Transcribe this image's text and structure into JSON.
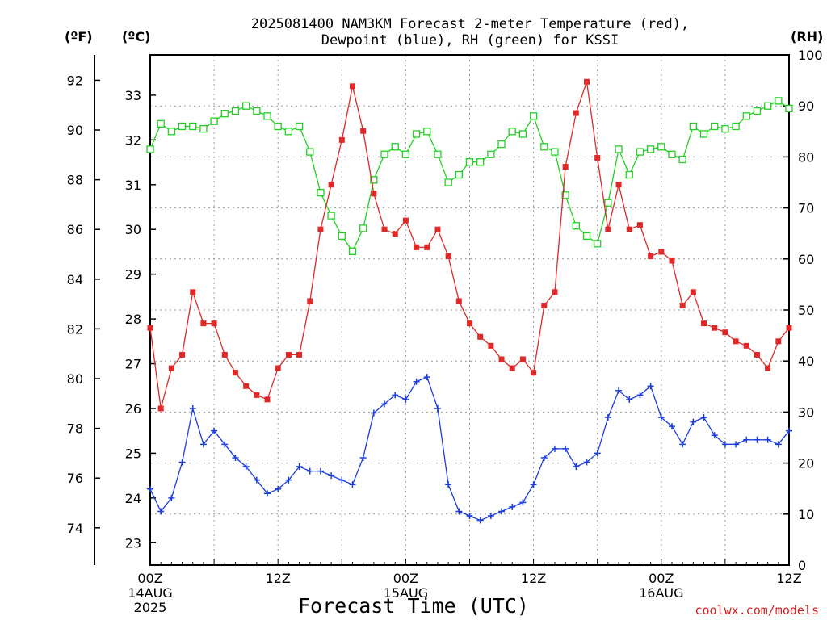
{
  "chart_data": {
    "type": "line",
    "title": [
      "2025081400 NAM3KM Forecast 2-meter Temperature (red),",
      "Dewpoint (blue), RH (green) for KSSI"
    ],
    "xlabel": "Forecast Time (UTC)",
    "source": "coolwx.com/models",
    "units": {
      "fahrenheit": "(ºF)",
      "celsius": "(ºC)",
      "rh": "(RH)"
    },
    "x_hours": [
      0,
      1,
      2,
      3,
      4,
      5,
      6,
      7,
      8,
      9,
      10,
      11,
      12,
      13,
      14,
      15,
      16,
      17,
      18,
      19,
      20,
      21,
      22,
      23,
      24,
      25,
      26,
      27,
      28,
      29,
      30,
      31,
      32,
      33,
      34,
      35,
      36,
      37,
      38,
      39,
      40,
      41,
      42,
      43,
      44,
      45,
      46,
      47,
      48,
      49,
      50,
      51,
      52,
      53,
      54,
      55,
      56,
      57,
      58,
      59,
      60
    ],
    "x_tick_labels": [
      {
        "hour": 0,
        "lines": [
          "00Z",
          "14AUG",
          "2025"
        ]
      },
      {
        "hour": 12,
        "lines": [
          "12Z"
        ]
      },
      {
        "hour": 24,
        "lines": [
          "00Z",
          "15AUG"
        ]
      },
      {
        "hour": 36,
        "lines": [
          "12Z"
        ]
      },
      {
        "hour": 48,
        "lines": [
          "00Z",
          "16AUG"
        ]
      },
      {
        "hour": 60,
        "lines": [
          "12Z"
        ]
      }
    ],
    "ylim_celsius": [
      22.5,
      33.9
    ],
    "yticks_celsius": [
      23,
      24,
      25,
      26,
      27,
      28,
      29,
      30,
      31,
      32,
      33
    ],
    "yticks_fahrenheit": [
      74,
      76,
      78,
      80,
      82,
      84,
      86,
      88,
      90,
      92
    ],
    "ylim_rh": [
      0,
      100
    ],
    "yticks_rh": [
      0,
      10,
      20,
      30,
      40,
      50,
      60,
      70,
      80,
      90,
      100
    ],
    "grid": true,
    "series": [
      {
        "name": "Temperature (red)",
        "axis": "celsius",
        "color": "#e02828",
        "marker": "filled-square",
        "values": [
          27.8,
          26.0,
          26.9,
          27.2,
          28.6,
          27.9,
          27.9,
          27.2,
          26.8,
          26.5,
          26.3,
          26.2,
          26.9,
          27.2,
          27.2,
          28.4,
          30.0,
          31.0,
          32.0,
          33.2,
          32.2,
          30.8,
          30.0,
          29.9,
          30.2,
          29.6,
          29.6,
          30.0,
          29.4,
          28.4,
          27.9,
          27.6,
          27.4,
          27.1,
          26.9,
          27.1,
          26.8,
          28.3,
          28.6,
          31.4,
          32.6,
          33.3,
          31.6,
          30.0,
          31.0,
          30.0,
          30.1,
          29.4,
          29.5,
          29.3,
          28.3,
          28.6,
          27.9,
          27.8,
          27.7,
          27.5,
          27.4,
          27.2,
          26.9,
          27.5,
          27.8
        ]
      },
      {
        "name": "Dewpoint (blue)",
        "axis": "celsius",
        "color": "#1c3ce0",
        "marker": "plus",
        "values": [
          24.2,
          23.7,
          24.0,
          24.8,
          26.0,
          25.2,
          25.5,
          25.2,
          24.9,
          24.7,
          24.4,
          24.1,
          24.2,
          24.4,
          24.7,
          24.6,
          24.6,
          24.5,
          24.4,
          24.3,
          24.9,
          25.9,
          26.1,
          26.3,
          26.2,
          26.6,
          26.7,
          26.0,
          24.3,
          23.7,
          23.6,
          23.5,
          23.6,
          23.7,
          23.8,
          23.9,
          24.3,
          24.9,
          25.1,
          25.1,
          24.7,
          24.8,
          25.0,
          25.8,
          26.4,
          26.2,
          26.3,
          26.5,
          25.8,
          25.6,
          25.2,
          25.7,
          25.8,
          25.4,
          25.2,
          25.2,
          25.3,
          25.3,
          25.3,
          25.2,
          25.5
        ]
      },
      {
        "name": "RH (green)",
        "axis": "rh",
        "color": "#22d022",
        "marker": "open-square",
        "values": [
          81.5,
          86.5,
          85.0,
          86.0,
          86.0,
          85.5,
          87.0,
          88.5,
          89.0,
          90.0,
          89.0,
          88.0,
          86.0,
          85.0,
          86.0,
          81.0,
          73.0,
          68.5,
          64.5,
          61.5,
          66.0,
          75.5,
          80.5,
          82.0,
          80.5,
          84.5,
          85.0,
          80.5,
          75.0,
          76.5,
          79.0,
          79.0,
          80.5,
          82.5,
          85.0,
          84.5,
          88.0,
          82.0,
          81.0,
          72.5,
          66.5,
          64.5,
          63.0,
          71.0,
          81.5,
          76.5,
          81.0,
          81.5,
          82.0,
          80.5,
          79.5,
          86.0,
          84.5,
          86.0,
          85.5,
          86.0,
          88.0,
          89.0,
          90.0,
          91.0,
          89.5
        ]
      }
    ]
  }
}
